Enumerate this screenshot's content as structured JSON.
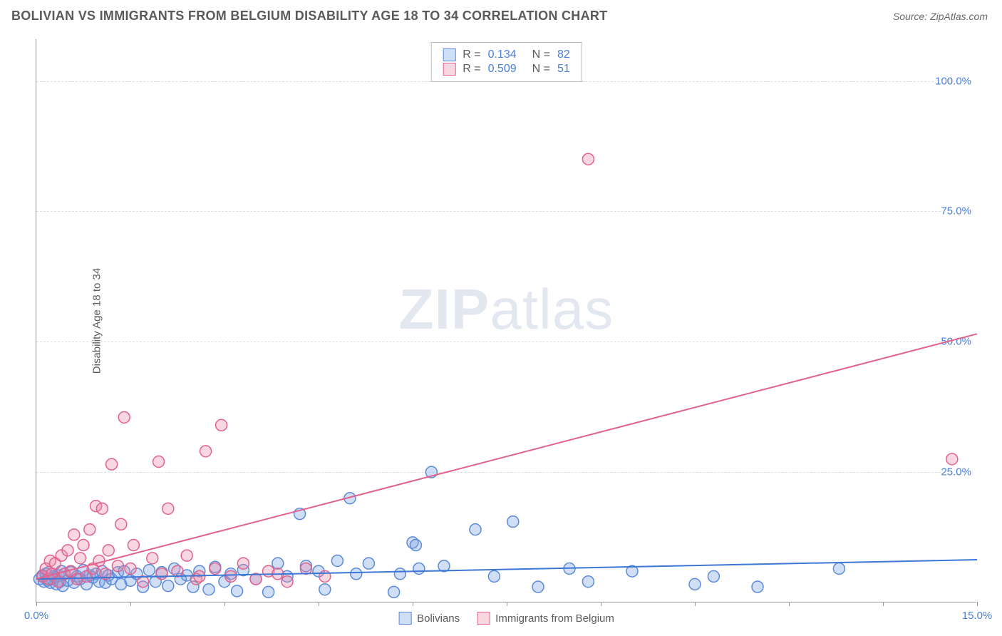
{
  "header": {
    "title": "BOLIVIAN VS IMMIGRANTS FROM BELGIUM DISABILITY AGE 18 TO 34 CORRELATION CHART",
    "source_prefix": "Source: ",
    "source": "ZipAtlas.com"
  },
  "chart": {
    "type": "scatter",
    "y_axis_label": "Disability Age 18 to 34",
    "xlim": [
      0,
      15
    ],
    "ylim": [
      0,
      108
    ],
    "x_ticks": [
      0,
      1.5,
      3,
      4.5,
      6,
      7.5,
      9,
      10.5,
      12,
      13.5,
      15
    ],
    "x_tick_labels": {
      "0": "0.0%",
      "15": "15.0%"
    },
    "y_grid": [
      25,
      50,
      75,
      100
    ],
    "y_tick_labels": [
      "25.0%",
      "50.0%",
      "75.0%",
      "100.0%"
    ],
    "background_color": "#ffffff",
    "grid_color": "#dddddd",
    "axis_color": "#999999",
    "watermark_text_bold": "ZIP",
    "watermark_text_rest": "atlas",
    "marker_radius": 8,
    "marker_stroke_width": 1.5,
    "line_width": 2,
    "series": [
      {
        "name": "Bolivians",
        "fill": "rgba(120,160,230,0.35)",
        "stroke": "#5b8bd8",
        "line_color": "#3d78d6",
        "R": "0.134",
        "N": "82",
        "regression": {
          "x1": 0,
          "y1": 4.5,
          "x2": 15,
          "y2": 8.2
        },
        "points": [
          [
            0.05,
            4.5
          ],
          [
            0.1,
            5.2
          ],
          [
            0.12,
            4.0
          ],
          [
            0.15,
            5.5
          ],
          [
            0.18,
            4.2
          ],
          [
            0.2,
            5.8
          ],
          [
            0.22,
            3.8
          ],
          [
            0.25,
            4.5
          ],
          [
            0.28,
            5.0
          ],
          [
            0.3,
            4.8
          ],
          [
            0.32,
            3.5
          ],
          [
            0.35,
            5.2
          ],
          [
            0.38,
            4.0
          ],
          [
            0.4,
            6.0
          ],
          [
            0.42,
            3.2
          ],
          [
            0.45,
            5.5
          ],
          [
            0.5,
            4.2
          ],
          [
            0.55,
            5.8
          ],
          [
            0.6,
            3.8
          ],
          [
            0.65,
            5.0
          ],
          [
            0.7,
            4.5
          ],
          [
            0.75,
            6.2
          ],
          [
            0.8,
            3.5
          ],
          [
            0.85,
            5.2
          ],
          [
            0.9,
            4.8
          ],
          [
            0.95,
            5.5
          ],
          [
            1.0,
            4.0
          ],
          [
            1.05,
            6.0
          ],
          [
            1.1,
            3.8
          ],
          [
            1.15,
            5.2
          ],
          [
            1.2,
            4.5
          ],
          [
            1.3,
            5.8
          ],
          [
            1.35,
            3.5
          ],
          [
            1.4,
            6.0
          ],
          [
            1.5,
            4.2
          ],
          [
            1.6,
            5.5
          ],
          [
            1.7,
            3.0
          ],
          [
            1.8,
            6.2
          ],
          [
            1.9,
            4.0
          ],
          [
            2.0,
            5.8
          ],
          [
            2.1,
            3.2
          ],
          [
            2.2,
            6.5
          ],
          [
            2.3,
            4.5
          ],
          [
            2.4,
            5.2
          ],
          [
            2.5,
            3.0
          ],
          [
            2.6,
            6.0
          ],
          [
            2.75,
            2.5
          ],
          [
            2.85,
            6.8
          ],
          [
            3.0,
            4.0
          ],
          [
            3.1,
            5.5
          ],
          [
            3.2,
            2.2
          ],
          [
            3.3,
            6.2
          ],
          [
            3.5,
            4.5
          ],
          [
            3.7,
            2.0
          ],
          [
            3.85,
            7.5
          ],
          [
            4.0,
            5.0
          ],
          [
            4.2,
            17.0
          ],
          [
            4.3,
            7.0
          ],
          [
            4.5,
            6.0
          ],
          [
            4.6,
            2.5
          ],
          [
            4.8,
            8.0
          ],
          [
            5.0,
            20.0
          ],
          [
            5.1,
            5.5
          ],
          [
            5.3,
            7.5
          ],
          [
            5.7,
            2.0
          ],
          [
            5.8,
            5.5
          ],
          [
            6.0,
            11.5
          ],
          [
            6.05,
            11.0
          ],
          [
            6.1,
            6.5
          ],
          [
            6.3,
            25.0
          ],
          [
            6.5,
            7.0
          ],
          [
            7.0,
            14.0
          ],
          [
            7.3,
            5.0
          ],
          [
            7.6,
            15.5
          ],
          [
            8.0,
            3.0
          ],
          [
            8.5,
            6.5
          ],
          [
            8.8,
            4.0
          ],
          [
            9.5,
            6.0
          ],
          [
            10.5,
            3.5
          ],
          [
            10.8,
            5.0
          ],
          [
            11.5,
            3.0
          ],
          [
            12.8,
            6.5
          ]
        ]
      },
      {
        "name": "Immigrants from Belgium",
        "fill": "rgba(235,140,170,0.35)",
        "stroke": "#e0628e",
        "line_color": "#e0628e",
        "R": "0.509",
        "N": "51",
        "regression": {
          "x1": 0,
          "y1": 4.5,
          "x2": 15,
          "y2": 51.5
        },
        "points": [
          [
            0.1,
            5.0
          ],
          [
            0.15,
            6.5
          ],
          [
            0.2,
            4.5
          ],
          [
            0.22,
            8.0
          ],
          [
            0.25,
            5.5
          ],
          [
            0.3,
            7.5
          ],
          [
            0.35,
            4.0
          ],
          [
            0.4,
            9.0
          ],
          [
            0.45,
            5.5
          ],
          [
            0.5,
            10.0
          ],
          [
            0.55,
            6.0
          ],
          [
            0.6,
            13.0
          ],
          [
            0.65,
            4.5
          ],
          [
            0.7,
            8.5
          ],
          [
            0.75,
            11.0
          ],
          [
            0.8,
            5.0
          ],
          [
            0.85,
            14.0
          ],
          [
            0.9,
            6.5
          ],
          [
            0.95,
            18.5
          ],
          [
            1.0,
            8.0
          ],
          [
            1.05,
            18.0
          ],
          [
            1.1,
            5.5
          ],
          [
            1.15,
            10.0
          ],
          [
            1.2,
            26.5
          ],
          [
            1.3,
            7.0
          ],
          [
            1.35,
            15.0
          ],
          [
            1.4,
            35.5
          ],
          [
            1.5,
            6.5
          ],
          [
            1.55,
            11.0
          ],
          [
            1.7,
            4.0
          ],
          [
            1.85,
            8.5
          ],
          [
            1.95,
            27.0
          ],
          [
            2.0,
            5.5
          ],
          [
            2.1,
            18.0
          ],
          [
            2.25,
            6.0
          ],
          [
            2.4,
            9.0
          ],
          [
            2.55,
            4.5
          ],
          [
            2.7,
            29.0
          ],
          [
            2.85,
            6.5
          ],
          [
            2.95,
            34.0
          ],
          [
            3.1,
            5.0
          ],
          [
            3.3,
            7.5
          ],
          [
            3.5,
            4.5
          ],
          [
            3.7,
            6.0
          ],
          [
            3.85,
            5.5
          ],
          [
            4.0,
            4.0
          ],
          [
            4.3,
            6.5
          ],
          [
            4.6,
            5.0
          ],
          [
            8.8,
            85.0
          ],
          [
            14.6,
            27.5
          ],
          [
            2.6,
            5.0
          ]
        ]
      }
    ],
    "stats_box": {
      "R_label": "R  =",
      "N_label": "N  ="
    },
    "legend": {
      "series1_label": "Bolivians",
      "series2_label": "Immigrants from Belgium"
    }
  }
}
